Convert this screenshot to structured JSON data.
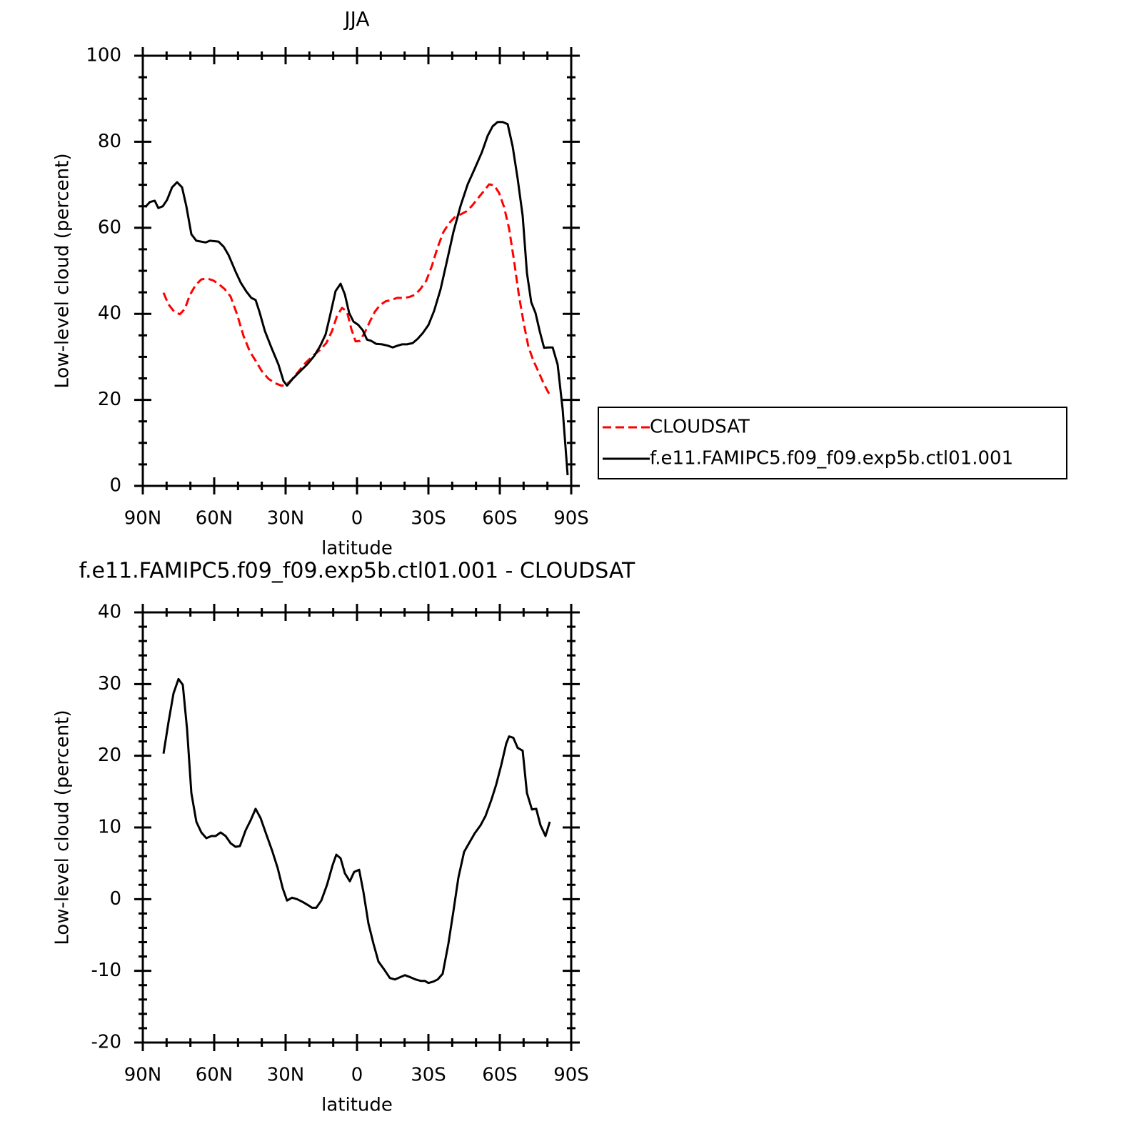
{
  "chart_data": [
    {
      "type": "line",
      "title": "JJA",
      "xlabel": "latitude",
      "ylabel": "Low-level cloud (percent)",
      "xlim": [
        90,
        -90
      ],
      "ylim": [
        0,
        100
      ],
      "xticks": [
        {
          "value": 90,
          "label": "90N"
        },
        {
          "value": 60,
          "label": "60N"
        },
        {
          "value": 30,
          "label": "30N"
        },
        0,
        {
          "value": -30,
          "label": "30S"
        },
        {
          "value": -60,
          "label": "60S"
        },
        {
          "value": -90,
          "label": "90S"
        }
      ],
      "yticks": [
        0,
        20,
        40,
        60,
        80,
        100
      ],
      "xminorticks": [
        80,
        70,
        50,
        40,
        20,
        10,
        -10,
        -20,
        -40,
        -50,
        -70,
        -80
      ],
      "yminorticks": [
        5,
        10,
        15,
        25,
        30,
        35,
        45,
        50,
        55,
        65,
        70,
        75,
        85,
        90,
        95
      ],
      "legend": "right",
      "series": [
        {
          "name": "CLOUDSAT",
          "color": "#ff0000",
          "dash": true,
          "x": [
            81.3,
            79.2,
            76.8,
            74.4,
            72.3,
            70.2,
            67.8,
            65.4,
            63,
            60.6,
            58.2,
            55.5,
            53.1,
            50.4,
            47.7,
            45,
            42.6,
            39.9,
            37.2,
            34.5,
            31.8,
            30,
            27.6,
            24.6,
            21.6,
            18.6,
            15.6,
            12.9,
            10.5,
            8.4,
            6.3,
            4.2,
            2.4,
            0.6,
            -1.2,
            -3.3,
            -5.4,
            -7.5,
            -9.6,
            -12,
            -14.4,
            -16.8,
            -19.5,
            -21.9,
            -24.3,
            -26.7,
            -29.1,
            -31.5,
            -33.9,
            -36.3,
            -38.7,
            -41.1,
            -43.5,
            -45.9,
            -48.3,
            -50.7,
            -53.1,
            -55.5,
            -57.6,
            -59.7,
            -61.8,
            -63.9,
            -66,
            -68.1,
            -70.2,
            -72,
            -74.1,
            -76.2,
            -78.6,
            -81
          ],
          "values": [
            44.9,
            42.2,
            40.5,
            39.9,
            41.2,
            44.4,
            46.7,
            48,
            48.2,
            47.8,
            47,
            45.7,
            44,
            39.9,
            34.9,
            31.2,
            29.1,
            26.6,
            24.9,
            23.9,
            23.3,
            23.4,
            24.6,
            26.6,
            28.6,
            30.2,
            31.6,
            33.2,
            36,
            39.5,
            41.4,
            40.5,
            36.5,
            33.6,
            33.7,
            35.7,
            38.2,
            40.5,
            42,
            42.9,
            43.2,
            43.7,
            43.7,
            43.9,
            44.4,
            45.8,
            47.7,
            51.2,
            55.5,
            59,
            61.1,
            62.5,
            63.1,
            63.8,
            65.1,
            66.8,
            68.4,
            70.1,
            69.9,
            68.1,
            64.8,
            59.8,
            52.3,
            44,
            37.4,
            32.4,
            29.1,
            26.6,
            23.6,
            21.1
          ]
        },
        {
          "name": "f.e11.FAMIPC5.f09_f09.exp5b.ctl01.001",
          "color": "#000000",
          "dash": false,
          "x": [
            89,
            87,
            85,
            83.5,
            81.6,
            79.8,
            77.7,
            75.6,
            73.5,
            71.7,
            69.6,
            67.5,
            63.6,
            61.8,
            58.2,
            56,
            54,
            51,
            48.9,
            46.5,
            44.4,
            42.6,
            41,
            38.7,
            36,
            33,
            30.9,
            29.4,
            27,
            24,
            21,
            18,
            15.6,
            13.2,
            11.4,
            9,
            6.9,
            5.1,
            3.3,
            1.5,
            -0.6,
            -2.4,
            -4.2,
            -6,
            -8.1,
            -10.5,
            -12.9,
            -15,
            -17.1,
            -18.9,
            -21,
            -23.4,
            -25.5,
            -27.6,
            -30,
            -32.4,
            -35.1,
            -37.8,
            -40.5,
            -43.5,
            -46.5,
            -49.5,
            -52.5,
            -54.9,
            -57,
            -59.1,
            -61.2,
            -63.3,
            -65.4,
            -67.5,
            -69.6,
            -71.4,
            -73.2,
            -75,
            -76.8,
            -78.6,
            -80.4,
            -82.2,
            -84.3,
            -86.4,
            -88.5
          ],
          "values": [
            64.8,
            66,
            66.3,
            64.6,
            65,
            66.5,
            69.4,
            70.6,
            69.4,
            65,
            58.5,
            57,
            56.6,
            57,
            56.8,
            55.6,
            53.7,
            49.8,
            47.3,
            45.2,
            43.7,
            43.2,
            40.5,
            36,
            32.2,
            28.2,
            24.4,
            23.3,
            24.9,
            26.6,
            28.2,
            30.2,
            32.4,
            35.2,
            39.4,
            45.3,
            47,
            44.5,
            40.2,
            38.2,
            37.4,
            36.2,
            34,
            33.7,
            33,
            32.9,
            32.6,
            32.2,
            32.6,
            32.9,
            32.9,
            33.2,
            34.2,
            35.5,
            37.4,
            40.7,
            45.7,
            52.3,
            59,
            65.1,
            70.1,
            73.8,
            77.6,
            81.4,
            83.6,
            84.6,
            84.6,
            84.1,
            78.9,
            71.4,
            62.8,
            49.5,
            42.7,
            40.2,
            35.9,
            32.1,
            32.2,
            32.2,
            28.2,
            17.8,
            2.5
          ]
        }
      ]
    },
    {
      "type": "line",
      "title": "f.e11.FAMIPC5.f09_f09.exp5b.ctl01.001 - CLOUDSAT",
      "xlabel": "latitude",
      "ylabel": "Low-level cloud (percent)",
      "xlim": [
        90,
        -90
      ],
      "ylim": [
        -20,
        40
      ],
      "xticks": [
        {
          "value": 90,
          "label": "90N"
        },
        {
          "value": 60,
          "label": "60N"
        },
        {
          "value": 30,
          "label": "30N"
        },
        0,
        {
          "value": -30,
          "label": "30S"
        },
        {
          "value": -60,
          "label": "60S"
        },
        {
          "value": -90,
          "label": "90S"
        }
      ],
      "yticks": [
        -20,
        -10,
        0,
        10,
        20,
        30,
        40
      ],
      "xminorticks": [
        80,
        70,
        50,
        40,
        20,
        10,
        -10,
        -20,
        -40,
        -50,
        -70,
        -80
      ],
      "yminorticks": [
        -18,
        -16,
        -14,
        -12,
        -8,
        -6,
        -4,
        -2,
        2,
        4,
        6,
        8,
        12,
        14,
        16,
        18,
        22,
        24,
        26,
        28,
        32,
        34,
        36,
        38
      ],
      "series": [
        {
          "color": "#000000",
          "dash": false,
          "x": [
            81.3,
            79.2,
            77.1,
            75,
            73.2,
            71.4,
            69.6,
            67.5,
            65.4,
            63.3,
            61.2,
            59.4,
            57.3,
            55.2,
            53.1,
            51,
            49.2,
            46.8,
            44.7,
            42.6,
            40.5,
            38.4,
            35.7,
            33.3,
            31.2,
            29.4,
            27.3,
            25.2,
            22.8,
            20.7,
            18.9,
            17.1,
            15,
            12.6,
            10.2,
            8.7,
            6.9,
            5.1,
            3,
            1.2,
            -0.9,
            -2.7,
            -4.8,
            -6.9,
            -9,
            -11.4,
            -13.8,
            -15.9,
            -18,
            -20.1,
            -22.5,
            -24.6,
            -26.7,
            -28.5,
            -30,
            -32.1,
            -33.9,
            -36,
            -38.4,
            -40.5,
            -42.6,
            -45,
            -47.4,
            -49.5,
            -51.9,
            -54,
            -56.4,
            -58.5,
            -60.6,
            -62.7,
            -63.9,
            -65.7,
            -67.5,
            -69.6,
            -71.4,
            -73.5,
            -75.3,
            -77.1,
            -79.2,
            -81
          ],
          "values": [
            20.3,
            24.7,
            28.7,
            30.7,
            29.9,
            23.7,
            14.8,
            10.8,
            9.3,
            8.5,
            8.8,
            8.8,
            9.3,
            8.8,
            7.8,
            7.3,
            7.4,
            9.6,
            11,
            12.6,
            11.3,
            9.3,
            6.8,
            4.3,
            1.5,
            -0.2,
            0.2,
            0,
            -0.4,
            -0.8,
            -1.2,
            -1.2,
            -0.2,
            2,
            4.8,
            6.2,
            5.7,
            3.6,
            2.5,
            3.8,
            4.1,
            1,
            -3.4,
            -6.2,
            -8.7,
            -9.8,
            -11,
            -11.2,
            -10.9,
            -10.6,
            -10.9,
            -11.2,
            -11.4,
            -11.4,
            -11.7,
            -11.5,
            -11.2,
            -10.4,
            -6.2,
            -1.7,
            3,
            6.6,
            8,
            9.2,
            10.3,
            11.6,
            13.8,
            16,
            18.7,
            21.7,
            22.7,
            22.5,
            21.1,
            20.7,
            14.8,
            12.5,
            12.6,
            10.3,
            8.8,
            10.8
          ]
        }
      ]
    }
  ]
}
